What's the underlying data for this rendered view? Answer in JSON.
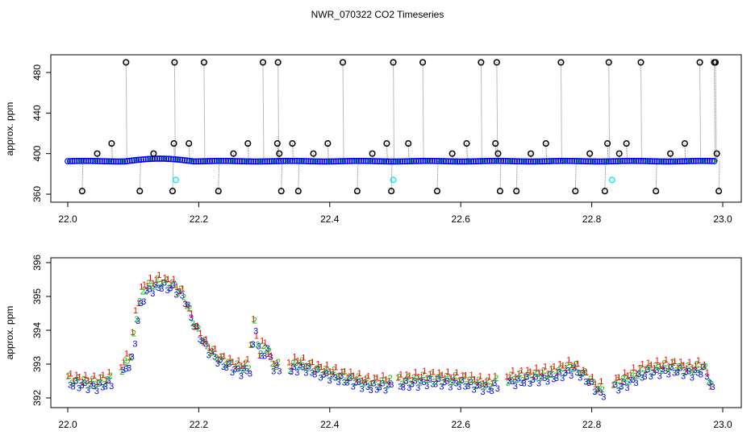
{
  "figure": {
    "title": "NWR_070322  CO2 Timeseries"
  },
  "chart_data": [
    {
      "type": "scatter",
      "title": "NWR_070322  CO2 Timeseries",
      "xlabel": "",
      "ylabel": "approx. ppm",
      "xlim": [
        22.0,
        23.0
      ],
      "ylim": [
        350,
        492
      ],
      "x_ticks": [
        "22.0",
        "22.2",
        "22.4",
        "22.6",
        "22.8",
        "23.0"
      ],
      "y_ticks": [
        "360",
        "400",
        "440",
        "480"
      ],
      "grid": false,
      "baseline_ppm": 392.5,
      "baseline_colors": {
        "blue": "#0000ff",
        "green": "#00c000",
        "red": "#ff0000",
        "cyan": "#00e5ee"
      },
      "open_circles_ppm": [
        {
          "x": 0.022,
          "y": 363
        },
        {
          "x": 0.045,
          "y": 400
        },
        {
          "x": 0.067,
          "y": 410
        },
        {
          "x": 0.089,
          "y": 490
        },
        {
          "x": 0.11,
          "y": 363
        },
        {
          "x": 0.131,
          "y": 400
        },
        {
          "x": 0.16,
          "y": 363
        },
        {
          "x": 0.162,
          "y": 410
        },
        {
          "x": 0.163,
          "y": 490
        },
        {
          "x": 0.185,
          "y": 410
        },
        {
          "x": 0.208,
          "y": 490
        },
        {
          "x": 0.23,
          "y": 363
        },
        {
          "x": 0.253,
          "y": 400
        },
        {
          "x": 0.275,
          "y": 410
        },
        {
          "x": 0.298,
          "y": 490
        },
        {
          "x": 0.32,
          "y": 410
        },
        {
          "x": 0.321,
          "y": 490
        },
        {
          "x": 0.323,
          "y": 400
        },
        {
          "x": 0.326,
          "y": 363
        },
        {
          "x": 0.343,
          "y": 410
        },
        {
          "x": 0.352,
          "y": 363
        },
        {
          "x": 0.375,
          "y": 400
        },
        {
          "x": 0.397,
          "y": 410
        },
        {
          "x": 0.42,
          "y": 490
        },
        {
          "x": 0.442,
          "y": 363
        },
        {
          "x": 0.465,
          "y": 400
        },
        {
          "x": 0.487,
          "y": 410
        },
        {
          "x": 0.494,
          "y": 363
        },
        {
          "x": 0.497,
          "y": 490
        },
        {
          "x": 0.52,
          "y": 410
        },
        {
          "x": 0.542,
          "y": 490
        },
        {
          "x": 0.564,
          "y": 363
        },
        {
          "x": 0.587,
          "y": 400
        },
        {
          "x": 0.609,
          "y": 410
        },
        {
          "x": 0.631,
          "y": 490
        },
        {
          "x": 0.653,
          "y": 410
        },
        {
          "x": 0.655,
          "y": 490
        },
        {
          "x": 0.657,
          "y": 400
        },
        {
          "x": 0.66,
          "y": 363
        },
        {
          "x": 0.685,
          "y": 363
        },
        {
          "x": 0.707,
          "y": 400
        },
        {
          "x": 0.73,
          "y": 410
        },
        {
          "x": 0.753,
          "y": 490
        },
        {
          "x": 0.775,
          "y": 363
        },
        {
          "x": 0.797,
          "y": 400
        },
        {
          "x": 0.82,
          "y": 363
        },
        {
          "x": 0.824,
          "y": 410
        },
        {
          "x": 0.826,
          "y": 490
        },
        {
          "x": 0.842,
          "y": 400
        },
        {
          "x": 0.853,
          "y": 410
        },
        {
          "x": 0.875,
          "y": 490
        },
        {
          "x": 0.898,
          "y": 363
        },
        {
          "x": 0.92,
          "y": 400
        },
        {
          "x": 0.942,
          "y": 410
        },
        {
          "x": 0.965,
          "y": 490
        },
        {
          "x": 0.987,
          "y": 490
        },
        {
          "x": 0.989,
          "y": 490
        },
        {
          "x": 0.991,
          "y": 400
        },
        {
          "x": 0.994,
          "y": 363
        }
      ],
      "cyan_circles_ppm": [
        {
          "x": 0.165,
          "y": 374
        },
        {
          "x": 0.497,
          "y": 374
        },
        {
          "x": 0.831,
          "y": 374
        }
      ]
    },
    {
      "type": "scatter",
      "title": "",
      "xlabel": "",
      "ylabel": "approx. ppm",
      "xlim": [
        22.0,
        23.0
      ],
      "ylim": [
        391.7,
        396.1
      ],
      "x_ticks": [
        "22.0",
        "22.2",
        "22.4",
        "22.6",
        "22.8",
        "23.0"
      ],
      "y_ticks": [
        "392",
        "393",
        "394",
        "395",
        "396"
      ],
      "grid": false,
      "series": [
        {
          "name": "1",
          "color": "#ff0000",
          "offset_ppm": 0.15
        },
        {
          "name": "2",
          "color": "#00c000",
          "offset_ppm": 0.05
        },
        {
          "name": "3",
          "color": "#0000ff",
          "offset_ppm": -0.08
        }
      ],
      "trend_ppm": [
        {
          "x": 22.0,
          "y": 392.5
        },
        {
          "x": 22.02,
          "y": 392.45
        },
        {
          "x": 22.04,
          "y": 392.4
        },
        {
          "x": 22.06,
          "y": 392.5
        },
        {
          "x": 22.08,
          "y": 392.8
        },
        {
          "x": 22.095,
          "y": 393.2
        },
        {
          "x": 22.105,
          "y": 394.6
        },
        {
          "x": 22.115,
          "y": 395.2
        },
        {
          "x": 22.14,
          "y": 395.4
        },
        {
          "x": 22.16,
          "y": 395.3
        },
        {
          "x": 22.175,
          "y": 395.0
        },
        {
          "x": 22.19,
          "y": 394.2
        },
        {
          "x": 22.21,
          "y": 393.5
        },
        {
          "x": 22.23,
          "y": 393.1
        },
        {
          "x": 22.26,
          "y": 392.85
        },
        {
          "x": 22.275,
          "y": 392.9
        },
        {
          "x": 22.283,
          "y": 394.2
        },
        {
          "x": 22.292,
          "y": 393.2
        },
        {
          "x": 22.3,
          "y": 393.6
        },
        {
          "x": 22.31,
          "y": 393.0
        },
        {
          "x": 22.33,
          "y": 392.8
        },
        {
          "x": 22.35,
          "y": 393.0
        },
        {
          "x": 22.38,
          "y": 392.8
        },
        {
          "x": 22.42,
          "y": 392.6
        },
        {
          "x": 22.46,
          "y": 392.4
        },
        {
          "x": 22.5,
          "y": 392.45
        },
        {
          "x": 22.55,
          "y": 392.55
        },
        {
          "x": 22.6,
          "y": 392.5
        },
        {
          "x": 22.64,
          "y": 392.35
        },
        {
          "x": 22.66,
          "y": 392.5
        },
        {
          "x": 22.7,
          "y": 392.6
        },
        {
          "x": 22.74,
          "y": 392.7
        },
        {
          "x": 22.77,
          "y": 392.9
        },
        {
          "x": 22.79,
          "y": 392.6
        },
        {
          "x": 22.81,
          "y": 392.2
        },
        {
          "x": 22.825,
          "y": 392.3
        },
        {
          "x": 22.85,
          "y": 392.5
        },
        {
          "x": 22.88,
          "y": 392.8
        },
        {
          "x": 22.92,
          "y": 392.9
        },
        {
          "x": 22.95,
          "y": 392.8
        },
        {
          "x": 22.97,
          "y": 392.9
        },
        {
          "x": 22.985,
          "y": 392.1
        }
      ]
    }
  ]
}
